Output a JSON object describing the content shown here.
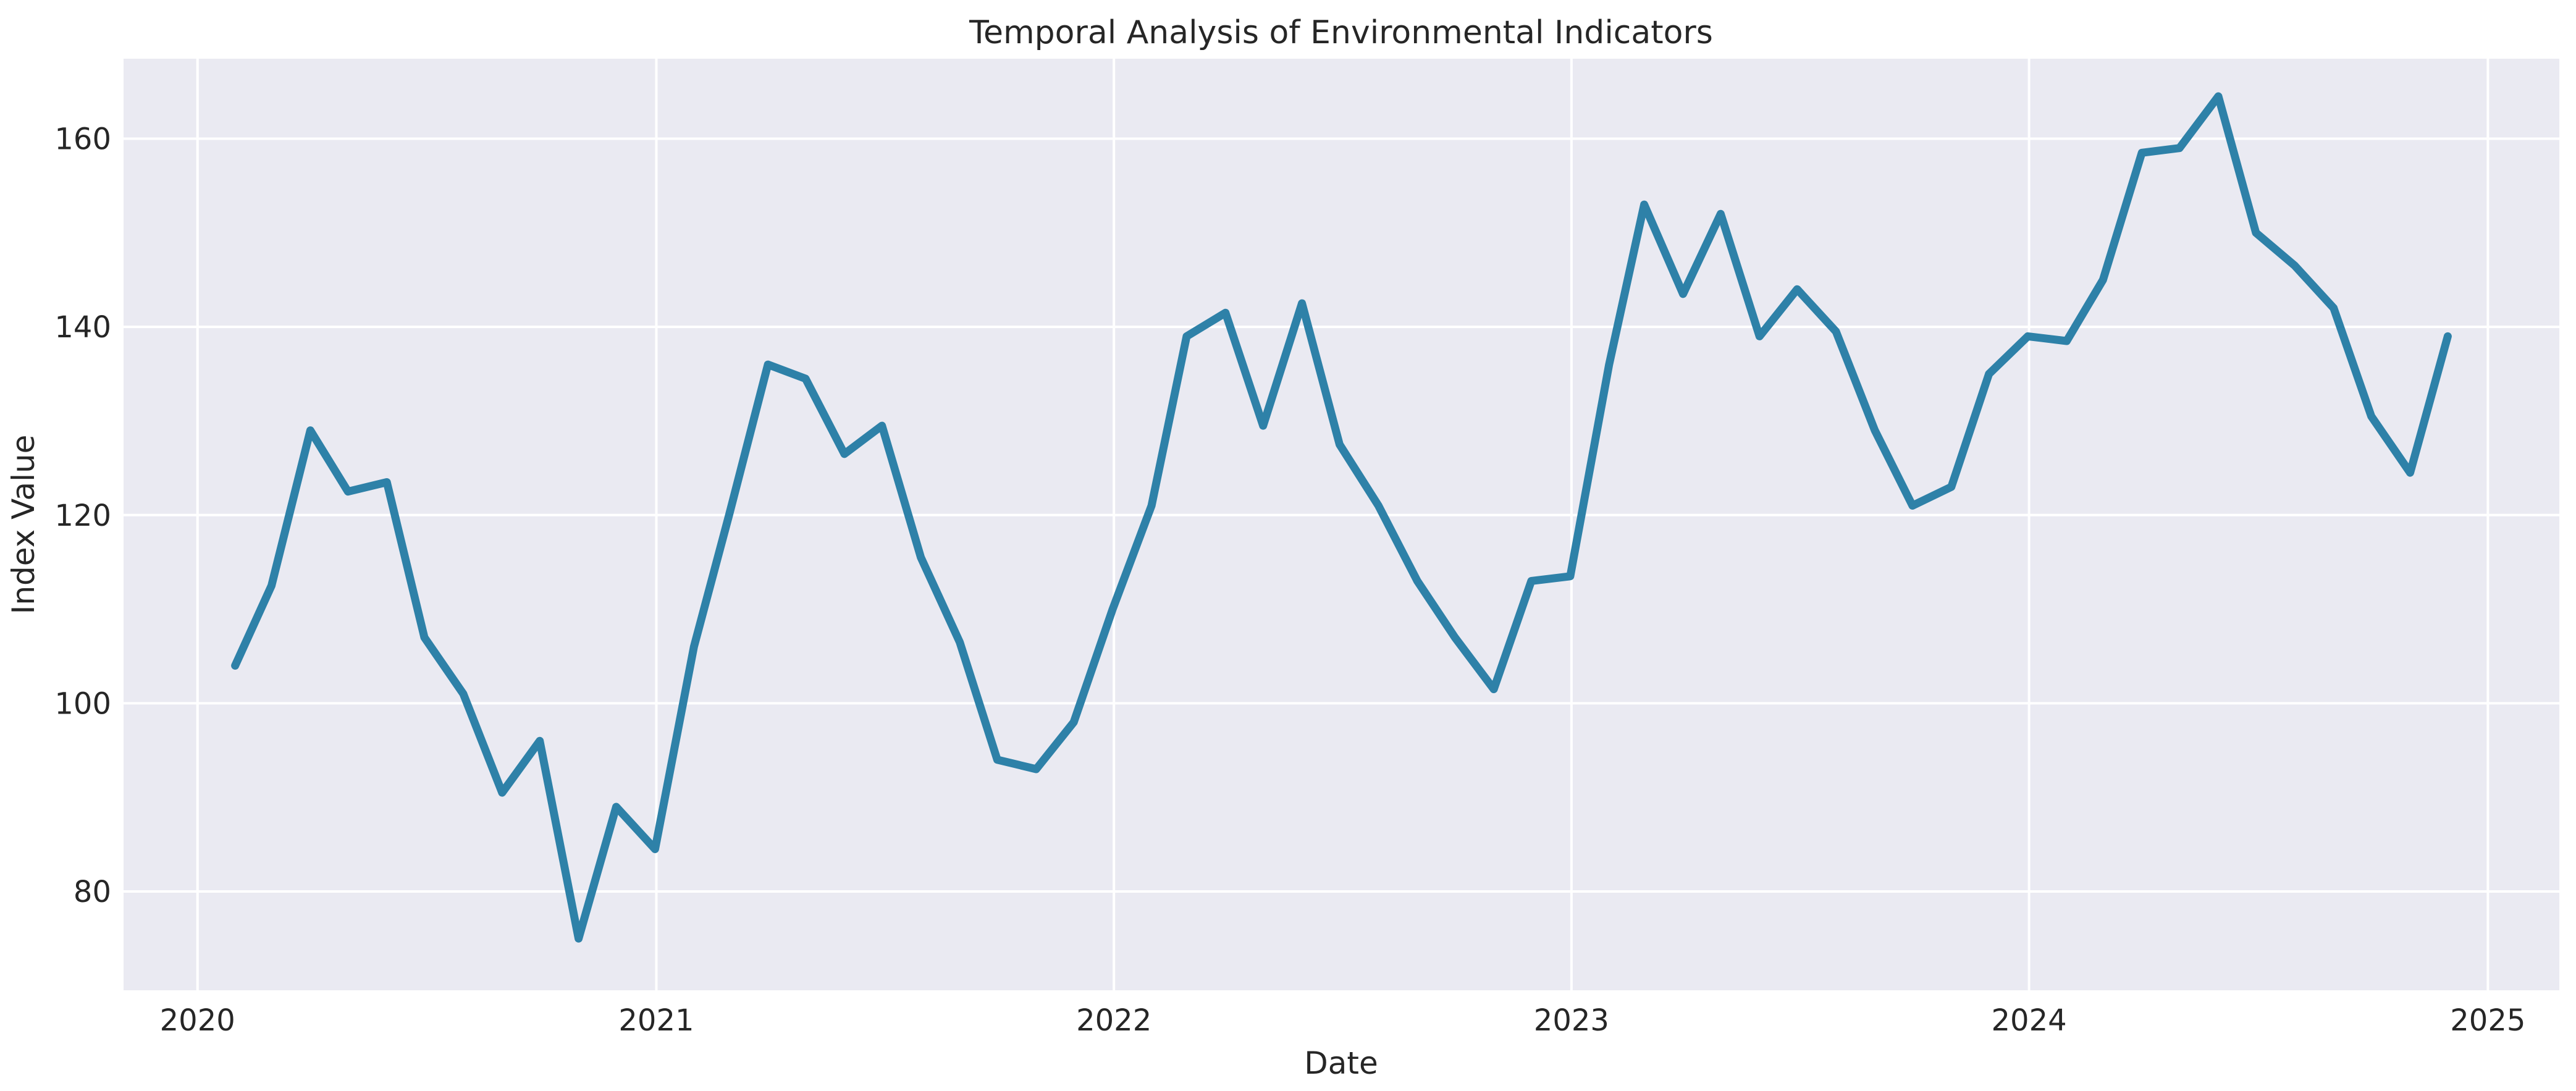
{
  "figure": {
    "title": "Temporal Analysis of Environmental Indicators",
    "xlabel": "Date",
    "ylabel": "Index Value"
  },
  "chart_data": {
    "type": "line",
    "title": "Temporal Analysis of Environmental Indicators",
    "xlabel": "Date",
    "ylabel": "Index Value",
    "x": [
      "2020-01",
      "2020-02",
      "2020-03",
      "2020-04",
      "2020-05",
      "2020-06",
      "2020-07",
      "2020-08",
      "2020-09",
      "2020-10",
      "2020-11",
      "2020-12",
      "2021-01",
      "2021-02",
      "2021-03",
      "2021-04",
      "2021-05",
      "2021-06",
      "2021-07",
      "2021-08",
      "2021-09",
      "2021-10",
      "2021-11",
      "2021-12",
      "2022-01",
      "2022-02",
      "2022-03",
      "2022-04",
      "2022-05",
      "2022-06",
      "2022-07",
      "2022-08",
      "2022-09",
      "2022-10",
      "2022-11",
      "2022-12",
      "2023-01",
      "2023-02",
      "2023-03",
      "2023-04",
      "2023-05",
      "2023-06",
      "2023-07",
      "2023-08",
      "2023-09",
      "2023-10",
      "2023-11",
      "2023-12",
      "2024-01",
      "2024-02",
      "2024-03",
      "2024-04",
      "2024-05",
      "2024-06",
      "2024-07",
      "2024-08",
      "2024-09",
      "2024-10",
      "2024-11"
    ],
    "values": [
      104,
      112.5,
      129,
      122.5,
      123.5,
      107,
      101,
      90.5,
      96,
      75,
      89,
      84.5,
      106,
      120,
      136,
      134.5,
      126.5,
      129.5,
      115.5,
      106.5,
      94,
      93,
      98,
      110,
      121,
      139,
      141.5,
      129.5,
      142.5,
      127.5,
      121,
      113,
      107,
      101.5,
      113,
      113.5,
      136,
      153,
      143.5,
      152,
      139,
      144,
      139.5,
      129,
      121,
      123,
      135,
      139,
      138.5,
      145,
      158.5,
      159,
      164.5,
      150,
      146.5,
      142,
      130.5,
      124.5,
      139
    ],
    "x_tick_labels": [
      "2020",
      "2021",
      "2022",
      "2023",
      "2024",
      "2025"
    ],
    "y_tick_labels": [
      "80",
      "100",
      "120",
      "140",
      "160"
    ],
    "y_ticks": [
      80,
      100,
      120,
      140,
      160
    ],
    "ylim": [
      69.5,
      168.5
    ],
    "xlim_dates": [
      "2019-11-03",
      "2025-02-27"
    ],
    "grid": true,
    "legend_position": "none",
    "colors": {
      "line": "#2e81a8",
      "plot_bg": "#eaeaf2",
      "grid": "#ffffff",
      "text": "#262626",
      "figure_bg": "#ffffff"
    }
  }
}
